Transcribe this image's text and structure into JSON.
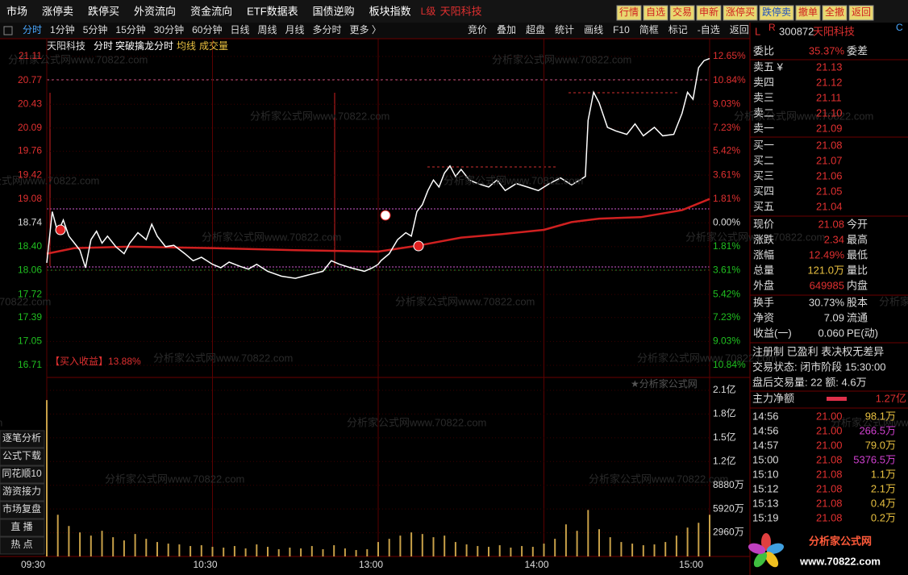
{
  "menu": {
    "items": [
      "市场",
      "涨停卖",
      "跌停买",
      "外资流向",
      "资金流向",
      "ETF数据表",
      "国债逆购",
      "板块指数"
    ],
    "level": "L级",
    "stock": "天阳科技",
    "buttons": [
      "行情",
      "自选",
      "交易",
      "申新",
      "涨停买",
      "跌停卖",
      "撤单",
      "全撤",
      "返回"
    ]
  },
  "toolbar": {
    "periods": [
      "分时",
      "1分钟",
      "5分钟",
      "15分钟",
      "30分钟",
      "60分钟",
      "日线",
      "周线",
      "月线",
      "多分时",
      "更多 〉"
    ],
    "tools": [
      "竞价",
      "叠加",
      "超盘",
      "统计",
      "画线",
      "F10",
      "简框",
      "标记",
      "-自选",
      "返回"
    ]
  },
  "sidebar": [
    "逐笔分析",
    "公式下载",
    "同花顺10",
    "游资接力",
    "市场复盘",
    "直  播",
    "热  点"
  ],
  "chart": {
    "name": "天阳科技",
    "indicators": [
      "分时",
      "突破擒龙分时",
      "均线",
      "成交量"
    ],
    "annotation": "【买入收益】13.88%",
    "watermark": "分析家公式网www.70822.com",
    "badge": "★分析家公式网",
    "ylim": [
      16.71,
      21.11
    ],
    "price_ticks": [
      21.11,
      20.77,
      20.43,
      20.09,
      19.76,
      19.42,
      19.08,
      18.74,
      {
        "value": 18.4,
        "label": "18.40"
      },
      18.06,
      17.72,
      17.39,
      17.05,
      16.71
    ],
    "pct_ticks": [
      "12.65%",
      "10.84%",
      "9.03%",
      "7.23%",
      "5.42%",
      "3.61%",
      "1.81%",
      "0.00%",
      "1.81%",
      "3.61%",
      "5.42%",
      "7.23%",
      "9.03%",
      "10.84%"
    ],
    "xlim": [
      0,
      240
    ],
    "time_ticks": [
      {
        "value": 0,
        "label": "09:30"
      },
      {
        "value": 60,
        "label": "10:30"
      },
      {
        "value": 120,
        "label": "13:00"
      },
      {
        "value": 180,
        "label": "14:00"
      },
      {
        "value": 240,
        "label": "15:00"
      }
    ],
    "price": {
      "x": [
        0,
        2,
        4,
        6,
        8,
        10,
        12,
        14,
        16,
        18,
        20,
        22,
        25,
        28,
        30,
        33,
        36,
        38,
        40,
        43,
        46,
        50,
        53,
        56,
        60,
        63,
        66,
        70,
        73,
        76,
        80,
        85,
        90,
        95,
        100,
        103,
        106,
        110,
        115,
        118,
        120,
        121,
        124,
        127,
        130,
        132,
        134,
        136,
        138,
        140,
        142,
        144,
        146,
        148,
        150,
        153,
        156,
        160,
        163,
        166,
        170,
        174,
        178,
        182,
        186,
        190,
        193,
        195,
        196,
        198,
        200,
        203,
        206,
        210,
        213,
        216,
        220,
        223,
        227,
        230,
        232,
        234,
        236,
        238,
        240
      ],
      "values": [
        18.17,
        18.9,
        18.6,
        18.78,
        18.55,
        18.45,
        18.35,
        18.1,
        18.5,
        18.62,
        18.45,
        18.55,
        18.4,
        18.3,
        18.45,
        18.6,
        18.5,
        18.72,
        18.55,
        18.4,
        18.42,
        18.3,
        18.2,
        18.25,
        18.15,
        18.1,
        18.18,
        18.12,
        18.08,
        18.15,
        18.05,
        17.98,
        17.95,
        18.0,
        18.05,
        18.2,
        18.15,
        18.1,
        18.05,
        18.1,
        18.15,
        18.2,
        18.3,
        18.5,
        18.6,
        18.55,
        18.9,
        19.0,
        19.2,
        19.35,
        19.25,
        19.45,
        19.55,
        19.4,
        19.5,
        19.35,
        19.3,
        19.25,
        19.35,
        19.2,
        19.3,
        19.25,
        19.2,
        19.3,
        19.38,
        19.28,
        19.35,
        19.4,
        20.2,
        20.6,
        20.45,
        20.1,
        20.05,
        20.0,
        20.15,
        19.98,
        20.1,
        19.98,
        20.0,
        20.3,
        20.6,
        20.5,
        20.95,
        21.05,
        21.08
      ]
    },
    "avg": {
      "x": [
        0,
        10,
        30,
        60,
        90,
        120,
        135,
        150,
        165,
        180,
        190,
        200,
        215,
        230,
        240
      ],
      "values": [
        18.3,
        18.38,
        18.4,
        18.38,
        18.35,
        18.33,
        18.42,
        18.53,
        18.58,
        18.64,
        18.75,
        18.8,
        18.82,
        18.92,
        19.08
      ]
    },
    "vlim": [
      0,
      20720
    ],
    "volume_ticks": [
      {
        "value": 20720,
        "label": "2.1亿"
      },
      {
        "value": 17760,
        "label": "1.8亿"
      },
      {
        "value": 14800,
        "label": "1.5亿"
      },
      {
        "value": 11840,
        "label": "1.2亿"
      },
      {
        "value": 8880,
        "label": "8880万"
      },
      {
        "value": 5920,
        "label": "5920万"
      },
      {
        "value": 2960,
        "label": "2960万"
      }
    ],
    "volume": {
      "x": [
        0,
        4,
        8,
        12,
        16,
        20,
        24,
        28,
        32,
        36,
        40,
        44,
        48,
        52,
        56,
        60,
        64,
        68,
        72,
        76,
        80,
        84,
        88,
        92,
        96,
        100,
        104,
        108,
        112,
        116,
        120,
        124,
        128,
        132,
        136,
        140,
        144,
        148,
        152,
        156,
        160,
        164,
        168,
        172,
        176,
        180,
        184,
        188,
        192,
        196,
        200,
        204,
        208,
        212,
        216,
        220,
        224,
        228,
        232,
        236,
        240
      ],
      "values": [
        19500,
        5200,
        3800,
        3000,
        2600,
        3200,
        2400,
        2000,
        2800,
        2200,
        1800,
        1600,
        1500,
        1300,
        1400,
        1200,
        1100,
        1300,
        1000,
        1500,
        1200,
        900,
        1100,
        1000,
        1300,
        900,
        1400,
        1000,
        800,
        900,
        1800,
        2200,
        2600,
        3000,
        2800,
        2400,
        2600,
        1800,
        1500,
        1300,
        1200,
        1400,
        1100,
        1300,
        1200,
        1600,
        2200,
        4000,
        3200,
        5800,
        3400,
        2400,
        1800,
        1600,
        1400,
        1500,
        1800,
        2600,
        3600,
        4200,
        5200
      ]
    }
  },
  "panel": {
    "header": {
      "l": "L",
      "r": "R",
      "code": "300872",
      "name": "天阳科技",
      "c": "C"
    },
    "ratio": {
      "label": "委比",
      "value": "35.37%",
      "label2": "委差"
    },
    "asks": [
      [
        "卖五 ¥",
        "21.13"
      ],
      [
        "卖四",
        "21.12"
      ],
      [
        "卖三",
        "21.11"
      ],
      [
        "卖二",
        "21.10"
      ],
      [
        "卖一",
        "21.09"
      ]
    ],
    "bids": [
      [
        "买一",
        "21.08"
      ],
      [
        "买二",
        "21.07"
      ],
      [
        "买三",
        "21.06"
      ],
      [
        "买四",
        "21.05"
      ],
      [
        "买五",
        "21.04"
      ]
    ],
    "quote": [
      [
        "现价",
        "21.08",
        "今开"
      ],
      [
        "涨跌",
        "2.34",
        "最高"
      ],
      [
        "涨幅",
        "12.49%",
        "最低"
      ],
      [
        "总量",
        "121.0万",
        "量比"
      ],
      [
        "外盘",
        "649985",
        "内盘"
      ]
    ],
    "finance": [
      [
        "换手",
        "30.73%",
        "股本"
      ],
      [
        "净资",
        "7.09",
        "流通"
      ],
      [
        "收益(一)",
        "0.060",
        "PE(动)"
      ]
    ],
    "tags": "注册制  已盈利  表决权无差异",
    "status": "交易状态: 闭市阶段  15:30:00",
    "after": "盘后交易量: 22  额: 4.6万",
    "main": {
      "label": "主力净额",
      "value": "1.27亿"
    },
    "trades": [
      [
        "14:56",
        "21.00",
        "98.1万"
      ],
      [
        "14:56",
        "21.00",
        "266.5万"
      ],
      [
        "14:57",
        "21.00",
        "79.0万"
      ],
      [
        "15:00",
        "21.08",
        "5376.5万"
      ],
      [
        "15:10",
        "21.08",
        "1.1万"
      ],
      [
        "15:12",
        "21.08",
        "2.1万"
      ],
      [
        "15:13",
        "21.08",
        "0.4万"
      ],
      [
        "15:19",
        "21.08",
        "0.2万"
      ]
    ],
    "logo": {
      "title": "分析家公式网",
      "url": "www.70822.com"
    }
  }
}
